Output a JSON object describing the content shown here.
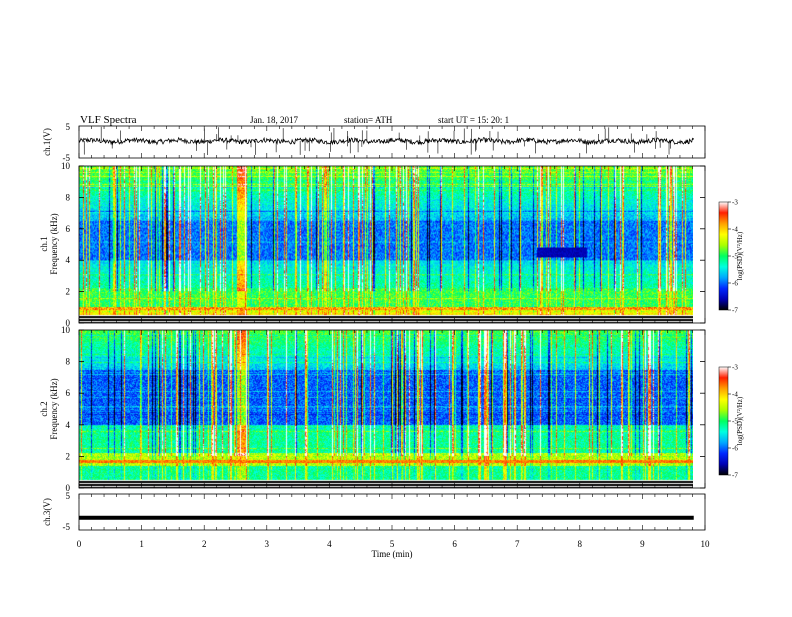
{
  "header": {
    "title": "VLF  Spectra",
    "date": "Jan.  18,  2017",
    "station": "station= ATH",
    "start": "start  UT  =    15: 20: 1"
  },
  "colors": {
    "colormap": [
      "#000000",
      "#0000b4",
      "#0028ff",
      "#00a8ff",
      "#00ffe0",
      "#00ff60",
      "#a8ff00",
      "#ffff00",
      "#ffa000",
      "#ff2000",
      "#ffffff"
    ],
    "trace": "#000000"
  },
  "chart_data": [
    {
      "type": "line",
      "name": "ch.1 waveform",
      "ylabel": "ch.1(V)",
      "ylim": [
        -5,
        5
      ],
      "yticks": [
        "5",
        "-5"
      ],
      "xlim": [
        0,
        10
      ],
      "approx_level": 0.3,
      "approx_noise_amplitude": 1.5
    },
    {
      "type": "heatmap",
      "name": "ch.1 spectrogram",
      "ylabel_top": "ch.1",
      "ylabel": "Frequency  (kHz)",
      "ylim": [
        0,
        10
      ],
      "yticks": [
        "0",
        "2",
        "4",
        "6",
        "8",
        "10"
      ],
      "xlim": [
        0,
        9.8
      ],
      "colorbar": {
        "label": "log(PSD)(V²/Hz)",
        "range": [
          -7,
          -3
        ],
        "ticks": [
          "-3",
          "-4",
          "-5",
          "-6",
          "-7"
        ]
      },
      "features": {
        "intense_low_band_khz": [
          0,
          1
        ],
        "quiet_band_khz": [
          4,
          6.5
        ],
        "dark_patch": {
          "time_min": [
            7.3,
            8.1
          ],
          "freq_khz": [
            4.2,
            4.8
          ]
        }
      }
    },
    {
      "type": "heatmap",
      "name": "ch.2 spectrogram",
      "ylabel_top": "ch.2",
      "ylabel": "Frequency  (kHz)",
      "ylim": [
        0,
        10
      ],
      "yticks": [
        "0",
        "2",
        "4",
        "6",
        "8",
        "10"
      ],
      "xlim": [
        0,
        9.8
      ],
      "colorbar": {
        "label": "log(PSD)(V²/Hz)",
        "range": [
          -7,
          -3
        ],
        "ticks": [
          "-3",
          "-4",
          "-5",
          "-6",
          "-7"
        ]
      },
      "features": {
        "intense_band_khz": [
          1.5,
          2.2
        ],
        "quiet_band_khz": [
          4,
          7.5
        ]
      }
    },
    {
      "type": "line",
      "name": "ch.3 waveform",
      "ylabel": "ch.3(V)",
      "ylim": [
        -5,
        5
      ],
      "yticks": [
        "5",
        "-5"
      ],
      "xlim": [
        0,
        10
      ],
      "approx_level": -1.6
    }
  ],
  "x_axis": {
    "label": "Time  (min)",
    "ticks": [
      "0",
      "1",
      "2",
      "3",
      "4",
      "5",
      "6",
      "7",
      "8",
      "9",
      "10"
    ]
  }
}
